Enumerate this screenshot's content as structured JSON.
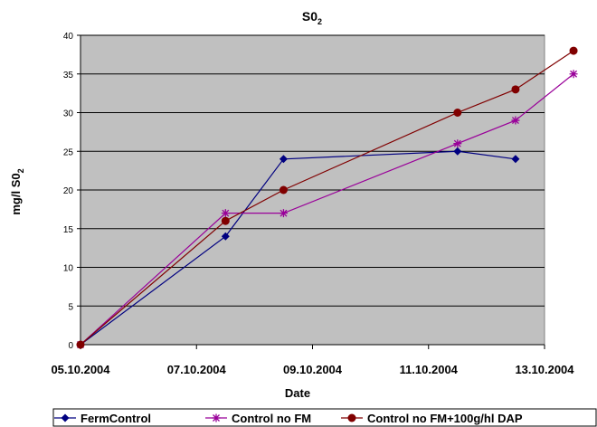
{
  "chart_data": {
    "type": "line",
    "title_main": "S0",
    "title_sub": "2",
    "xlabel": "Date",
    "ylabel_main": "mg/l S0",
    "ylabel_sub": "2",
    "ylim": [
      0,
      40
    ],
    "yticks": [
      "0",
      "5",
      "10",
      "15",
      "20",
      "25",
      "30",
      "35",
      "40"
    ],
    "xlim": [
      "05.10.2004",
      "13.10.2004"
    ],
    "xticks": [
      "05.10.2004",
      "07.10.2004",
      "09.10.2004",
      "11.10.2004",
      "13.10.2004"
    ],
    "grid": true,
    "plot_background": "#c0c0c0",
    "legend_position": "bottom",
    "series": [
      {
        "name": "FermControl",
        "color": "#000080",
        "marker": "diamond",
        "points": [
          [
            "05.10.2004",
            0
          ],
          [
            "07.10.2004 12:00",
            14
          ],
          [
            "08.10.2004 12:00",
            24
          ],
          [
            "11.10.2004 12:00",
            25
          ],
          [
            "12.10.2004 12:00",
            24
          ]
        ]
      },
      {
        "name": "Control no FM",
        "color": "#990099",
        "marker": "star",
        "points": [
          [
            "05.10.2004",
            0
          ],
          [
            "07.10.2004 12:00",
            17
          ],
          [
            "08.10.2004 12:00",
            17
          ],
          [
            "11.10.2004 12:00",
            26
          ],
          [
            "12.10.2004 12:00",
            29
          ],
          [
            "13.10.2004 12:00",
            35
          ]
        ]
      },
      {
        "name": "Control no FM+100g/hl DAP",
        "color": "#800000",
        "marker": "circle",
        "points": [
          [
            "05.10.2004",
            0
          ],
          [
            "07.10.2004 12:00",
            16
          ],
          [
            "08.10.2004 12:00",
            20
          ],
          [
            "11.10.2004 12:00",
            30
          ],
          [
            "12.10.2004 12:00",
            33
          ],
          [
            "13.10.2004 12:00",
            38
          ]
        ]
      }
    ]
  }
}
